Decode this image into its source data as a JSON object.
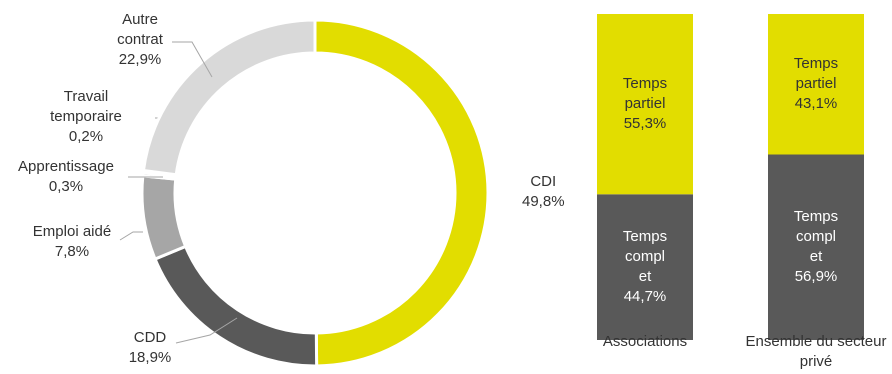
{
  "chart_data": [
    {
      "type": "pie",
      "donut": true,
      "slices": [
        {
          "label": "CDI",
          "value_text": "49,8%",
          "value": 49.8,
          "color": "#e2dd00"
        },
        {
          "label": "CDD",
          "value_text": "18,9%",
          "value": 18.9,
          "color": "#595959"
        },
        {
          "label": "Emploi aidé",
          "value_text": "7,8%",
          "value": 7.8,
          "color": "#a6a6a6"
        },
        {
          "label": "Apprentissage",
          "value_text": "0,3%",
          "value": 0.3,
          "color": "#bfbfbf"
        },
        {
          "label": "Travail temporaire",
          "label_lines": [
            "Travail",
            "temporaire"
          ],
          "value_text": "0,2%",
          "value": 0.2,
          "color": "#d0d0d0"
        },
        {
          "label": "Autre contrat",
          "label_lines": [
            "Autre",
            "contrat"
          ],
          "value_text": "22,9%",
          "value": 22.9,
          "color": "#d9d9d9"
        }
      ]
    },
    {
      "type": "bar",
      "stacked": true,
      "percent": true,
      "categories": [
        "Associations",
        "Ensemble du secteur privé"
      ],
      "category_lines": [
        [
          "Associations"
        ],
        [
          "Ensemble du secteur",
          "privé"
        ]
      ],
      "series": [
        {
          "name": "Temps compl et",
          "name_lines": [
            "Temps",
            "compl",
            "et"
          ],
          "values": [
            44.7,
            56.9
          ],
          "value_texts": [
            "44,7%",
            "56,9%"
          ],
          "color": "#595959"
        },
        {
          "name": "Temps partiel",
          "name_lines": [
            "Temps",
            "partiel"
          ],
          "values": [
            55.3,
            43.1
          ],
          "value_texts": [
            "55,3%",
            "43,1%"
          ],
          "color": "#e2dd00"
        }
      ]
    }
  ]
}
